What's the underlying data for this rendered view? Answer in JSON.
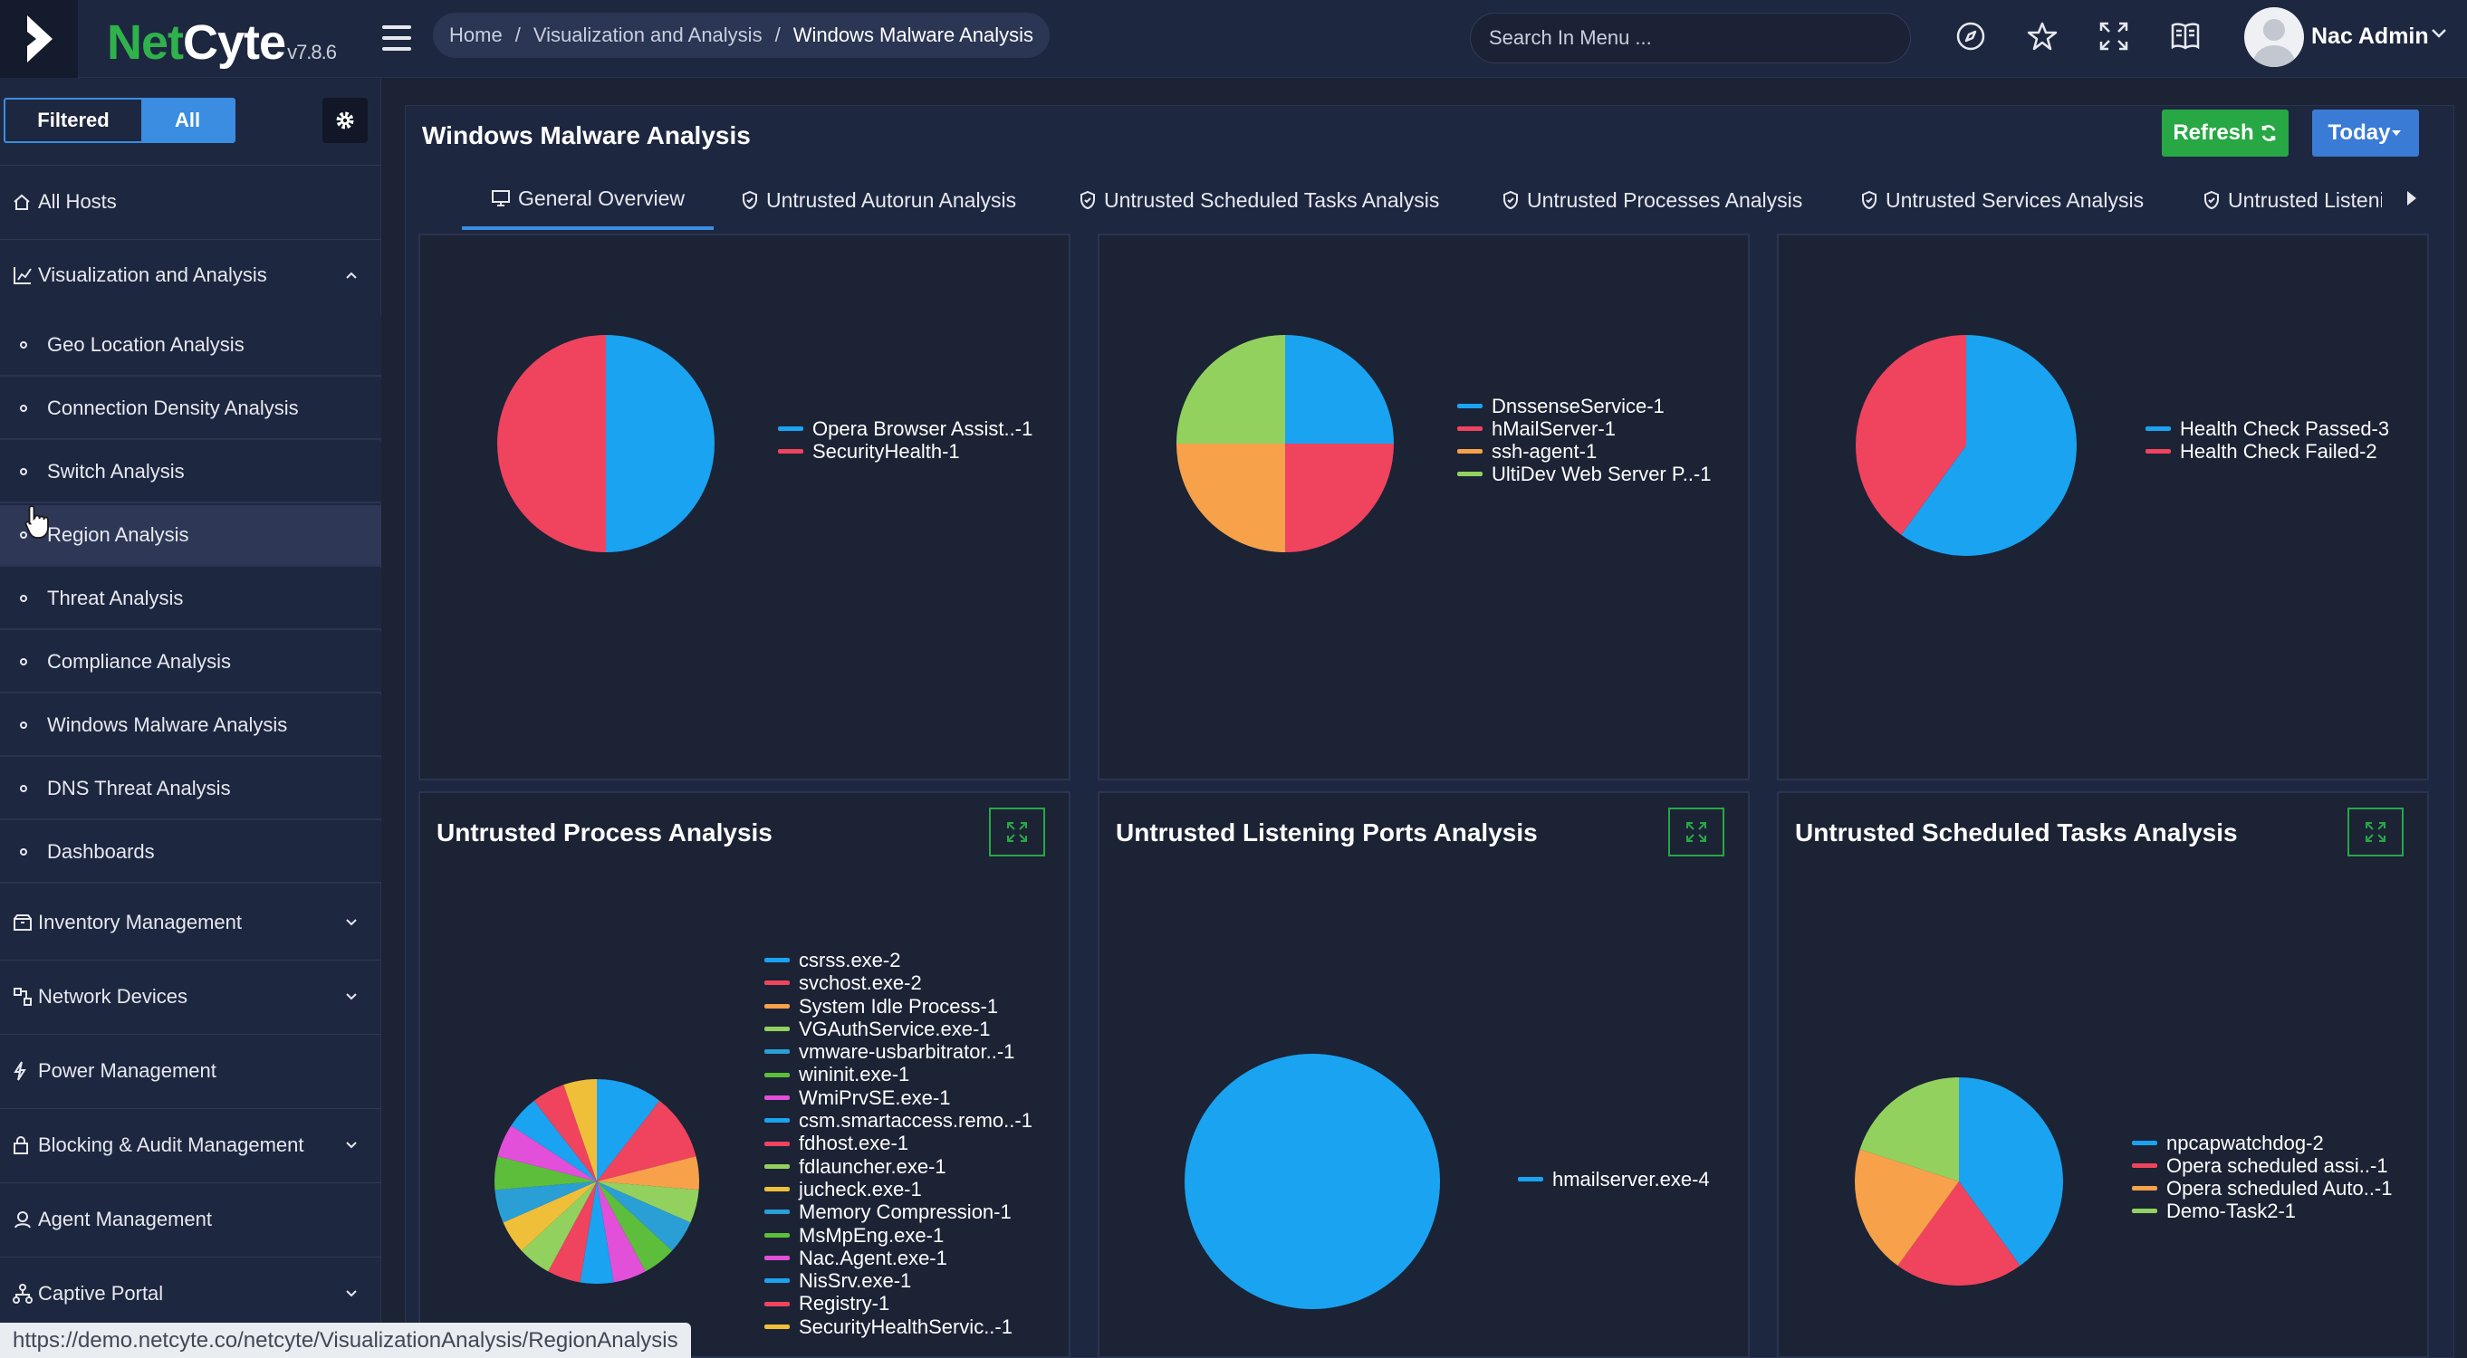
{
  "app": {
    "logo_net": "Net",
    "logo_cyte": "Cyte",
    "version": "v7.8.6",
    "user_name": "Nac Admin"
  },
  "breadcrumb": [
    "Home",
    "Visualization and Analysis",
    "Windows Malware Analysis"
  ],
  "search": {
    "placeholder": "Search In Menu ..."
  },
  "filter": {
    "filtered_label": "Filtered",
    "all_label": "All",
    "selected": "All"
  },
  "sidebar": {
    "all_hosts": "All Hosts",
    "viz_section": "Visualization and Analysis",
    "viz_items": [
      "Geo Location Analysis",
      "Connection Density Analysis",
      "Switch Analysis",
      "Region Analysis",
      "Threat Analysis",
      "Compliance Analysis",
      "Windows Malware Analysis",
      "DNS Threat Analysis",
      "Dashboards"
    ],
    "sections": [
      "Inventory Management",
      "Network Devices",
      "Power Management",
      "Blocking & Audit Management",
      "Agent Management",
      "Captive Portal"
    ]
  },
  "page": {
    "title": "Windows Malware Analysis",
    "refresh_label": "Refresh",
    "today_label": "Today"
  },
  "tabs": [
    "General Overview",
    "Untrusted Autorun Analysis",
    "Untrusted Scheduled Tasks Analysis",
    "Untrusted Processes Analysis",
    "Untrusted Services Analysis",
    "Untrusted Listeni"
  ],
  "status_url": "https://demo.netcyte.co/netcyte/VisualizationAnalysis/RegionAnalysis",
  "colors": {
    "blue": "#1aa3f0",
    "red": "#f0435e",
    "orange": "#f7a14a",
    "green": "#93d15f",
    "teal": "#2a9fd6",
    "lime": "#5dbe3c",
    "magenta": "#e24fd9",
    "yellow": "#f0bf3a"
  },
  "chart_data": [
    {
      "type": "pie",
      "title": "",
      "labels": [
        "Opera Browser Assist..-1",
        "SecurityHealth-1"
      ],
      "values": [
        1,
        1
      ],
      "colors": [
        "#1aa3f0",
        "#f0435e"
      ]
    },
    {
      "type": "pie",
      "title": "",
      "labels": [
        "DnssenseService-1",
        "hMailServer-1",
        "ssh-agent-1",
        "UltiDev Web Server P..-1"
      ],
      "values": [
        1,
        1,
        1,
        1
      ],
      "colors": [
        "#1aa3f0",
        "#f0435e",
        "#f7a14a",
        "#93d15f"
      ]
    },
    {
      "type": "pie",
      "title": "",
      "labels": [
        "Health Check Passed-3",
        "Health Check Failed-2"
      ],
      "values": [
        3,
        2
      ],
      "colors": [
        "#1aa3f0",
        "#f0435e"
      ]
    },
    {
      "type": "pie",
      "title": "Untrusted Process Analysis",
      "labels": [
        "csrss.exe-2",
        "svchost.exe-2",
        "System Idle Process-1",
        "VGAuthService.exe-1",
        "vmware-usbarbitrator..-1",
        "wininit.exe-1",
        "WmiPrvSE.exe-1",
        "csm.smartaccess.remo..-1",
        "fdhost.exe-1",
        "fdlauncher.exe-1",
        "jucheck.exe-1",
        "Memory Compression-1",
        "MsMpEng.exe-1",
        "Nac.Agent.exe-1",
        "NisSrv.exe-1",
        "Registry-1",
        "SecurityHealthServic..-1"
      ],
      "values": [
        2,
        2,
        1,
        1,
        1,
        1,
        1,
        1,
        1,
        1,
        1,
        1,
        1,
        1,
        1,
        1,
        1
      ],
      "colors": [
        "#1aa3f0",
        "#f0435e",
        "#f7a14a",
        "#93d15f",
        "#2a9fd6",
        "#5dbe3c",
        "#e24fd9",
        "#1aa3f0",
        "#f0435e",
        "#93d15f",
        "#f0bf3a",
        "#2a9fd6",
        "#5dbe3c",
        "#e24fd9",
        "#1aa3f0",
        "#f0435e",
        "#f0bf3a"
      ]
    },
    {
      "type": "pie",
      "title": "Untrusted Listening Ports Analysis",
      "labels": [
        "hmailserver.exe-4"
      ],
      "values": [
        4
      ],
      "colors": [
        "#1aa3f0"
      ]
    },
    {
      "type": "pie",
      "title": "Untrusted Scheduled Tasks Analysis",
      "labels": [
        "npcapwatchdog-2",
        "Opera scheduled assi..-1",
        "Opera scheduled Auto..-1",
        "Demo-Task2-1"
      ],
      "values": [
        2,
        1,
        1,
        1
      ],
      "colors": [
        "#1aa3f0",
        "#f0435e",
        "#f7a14a",
        "#93d15f"
      ]
    }
  ]
}
